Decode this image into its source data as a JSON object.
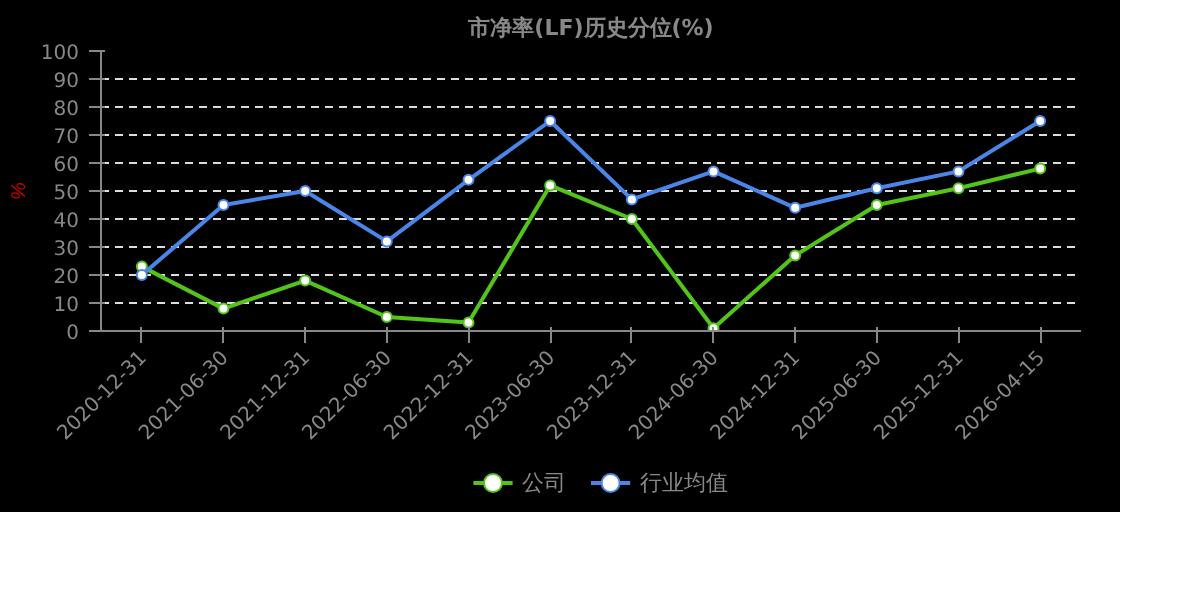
{
  "chart_data": {
    "type": "line",
    "title": "市净率(LF)历史分位(%)",
    "ylabel": "%",
    "categories": [
      "2020-12-31",
      "2021-06-30",
      "2021-12-31",
      "2022-06-30",
      "2022-12-31",
      "2023-06-30",
      "2023-12-31",
      "2024-06-30",
      "2024-12-31",
      "2025-06-30",
      "2025-12-31",
      "2026-04-15"
    ],
    "series": [
      {
        "name": "公司",
        "color": "#52c41a",
        "values": [
          23,
          8,
          18,
          5,
          3,
          52,
          40,
          1,
          27,
          45,
          51,
          58
        ]
      },
      {
        "name": "行业均值",
        "color": "#4a86e8",
        "values": [
          20,
          45,
          50,
          32,
          54,
          75,
          47,
          57,
          44,
          51,
          57,
          75
        ]
      }
    ],
    "ylim": [
      0,
      100
    ],
    "yticks": [
      0,
      10,
      20,
      30,
      40,
      50,
      60,
      70,
      80,
      90,
      100
    ],
    "grid": "y",
    "legend": "bottom",
    "marker": "circle",
    "line_style": "solid"
  }
}
